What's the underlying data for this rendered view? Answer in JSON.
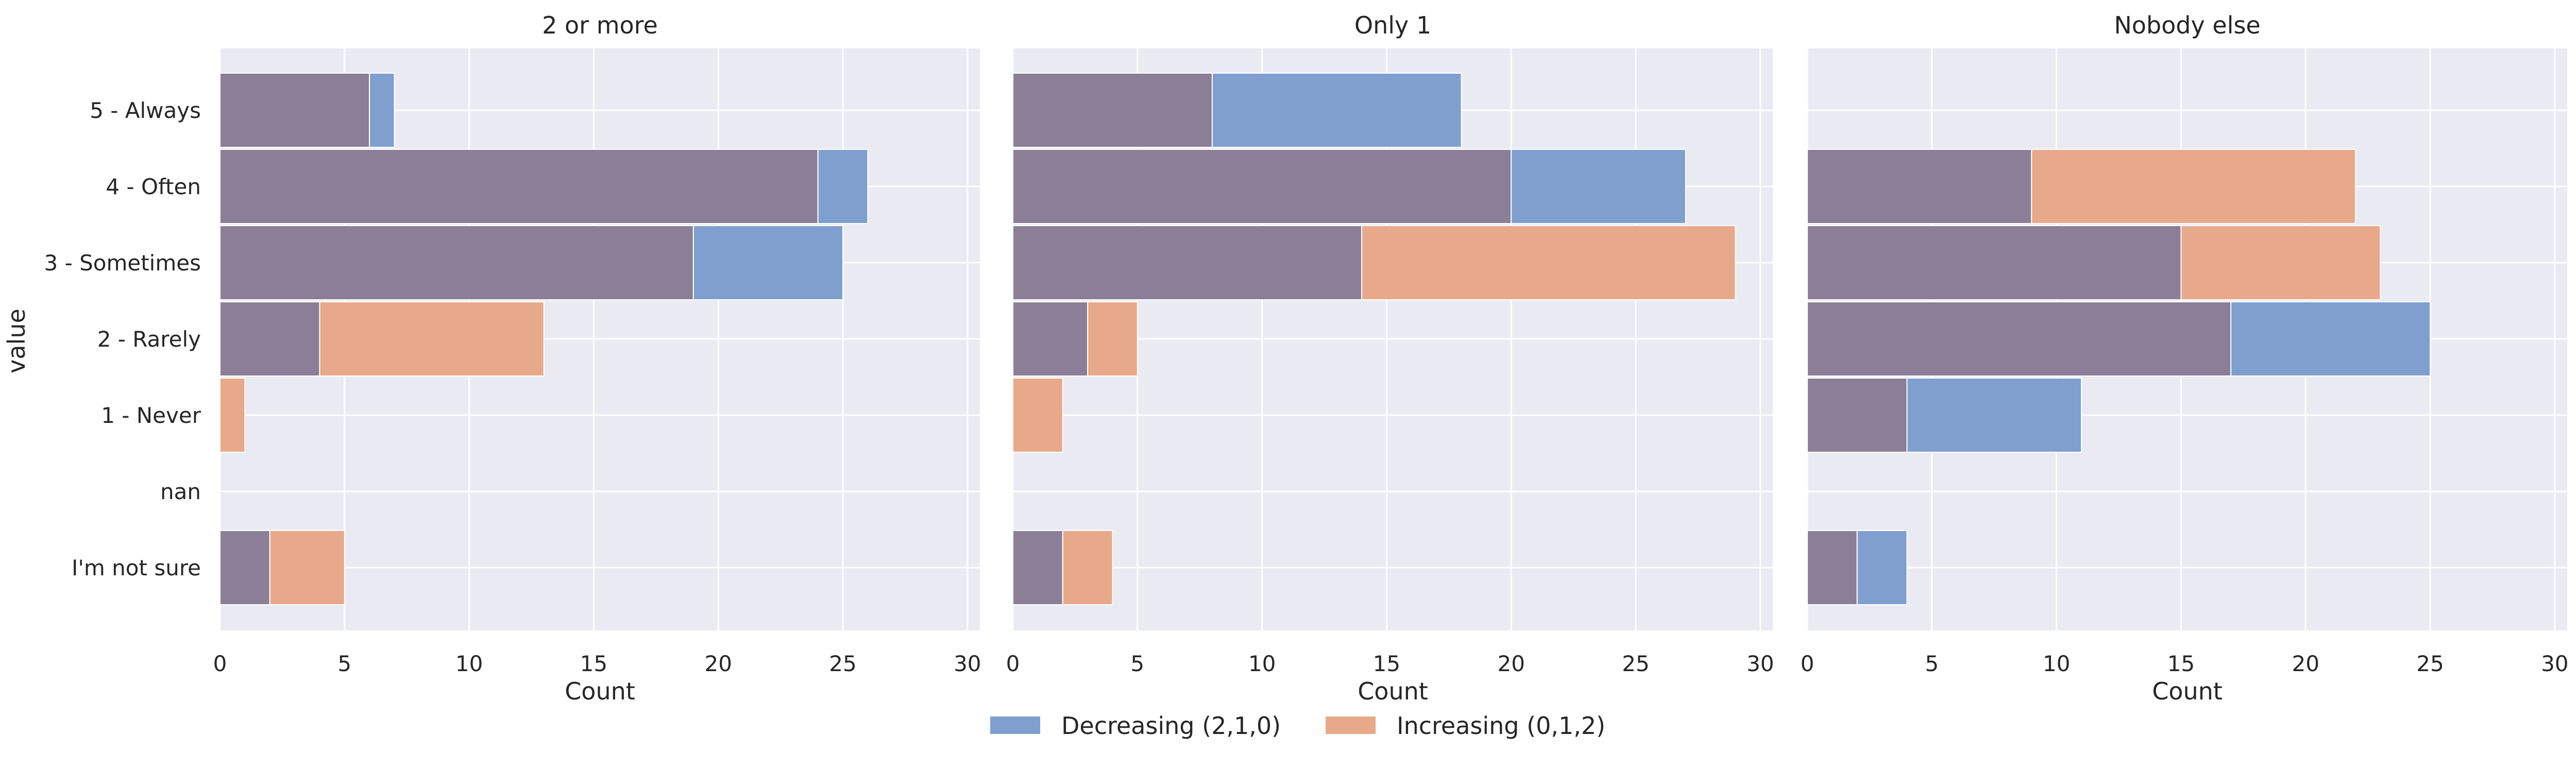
{
  "chart_data": {
    "type": "bar",
    "orientation": "horizontal",
    "stat": "count",
    "overlay": true,
    "y_label": "value",
    "x_label": "Count",
    "x_range": [
      0,
      30.5
    ],
    "x_ticks": [
      0,
      5,
      10,
      15,
      20,
      25,
      30
    ],
    "grid": true,
    "legend_position": "bottom-center",
    "categories": [
      "5 - Always",
      "4 - Often",
      "3 - Sometimes",
      "2 - Rarely",
      "1 - Never",
      "nan",
      "I'm not sure"
    ],
    "series_info": [
      {
        "name": "Decreasing (2,1,0)",
        "color": "#7f9fcf"
      },
      {
        "name": "Increasing (0,1,2)",
        "color": "#e8a98a"
      }
    ],
    "overlap_color": "#8a7f96",
    "panels": [
      {
        "title": "2 or more",
        "series": [
          {
            "name": "Decreasing (2,1,0)",
            "values": [
              7,
              26,
              25,
              4,
              0,
              0,
              2
            ]
          },
          {
            "name": "Increasing (0,1,2)",
            "values": [
              6,
              24,
              19,
              13,
              1,
              0,
              5
            ]
          }
        ]
      },
      {
        "title": "Only 1",
        "series": [
          {
            "name": "Decreasing (2,1,0)",
            "values": [
              18,
              27,
              14,
              3,
              0,
              0,
              2
            ]
          },
          {
            "name": "Increasing (0,1,2)",
            "values": [
              8,
              20,
              29,
              5,
              2,
              0,
              4
            ]
          }
        ]
      },
      {
        "title": "Nobody else",
        "series": [
          {
            "name": "Decreasing (2,1,0)",
            "values": [
              0,
              9,
              15,
              25,
              11,
              0,
              4
            ]
          },
          {
            "name": "Increasing (0,1,2)",
            "values": [
              0,
              22,
              23,
              17,
              4,
              0,
              2
            ]
          }
        ]
      }
    ]
  }
}
